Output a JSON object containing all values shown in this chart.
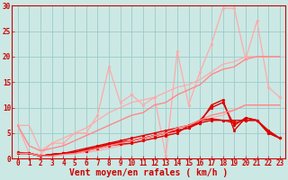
{
  "xlabel": "Vent moyen/en rafales ( km/h )",
  "ylabel": "",
  "xlim": [
    -0.5,
    23.5
  ],
  "ylim": [
    0,
    30
  ],
  "background_color": "#cce8e4",
  "grid_color": "#99cccc",
  "x": [
    0,
    1,
    2,
    3,
    4,
    5,
    6,
    7,
    8,
    9,
    10,
    11,
    12,
    13,
    14,
    15,
    16,
    17,
    18,
    19,
    20,
    21,
    22,
    23
  ],
  "lines": [
    {
      "y": [
        6.5,
        6.5,
        1.5,
        3.0,
        4.0,
        5.0,
        6.0,
        7.5,
        9.0,
        10.0,
        11.0,
        11.5,
        12.0,
        13.0,
        14.0,
        14.5,
        15.5,
        17.0,
        18.5,
        19.0,
        20.0,
        20.0,
        20.0,
        20.0
      ],
      "color": "#ffaaaa",
      "lw": 0.9,
      "marker": null,
      "ms": 0,
      "alpha": 1.0
    },
    {
      "y": [
        1.0,
        1.0,
        0.5,
        0.5,
        0.8,
        1.0,
        1.2,
        1.5,
        2.0,
        2.5,
        3.0,
        3.5,
        4.0,
        4.5,
        5.5,
        6.0,
        7.0,
        8.0,
        8.5,
        9.5,
        10.5,
        10.5,
        10.5,
        10.5
      ],
      "color": "#ffaaaa",
      "lw": 0.9,
      "marker": null,
      "ms": 0,
      "alpha": 1.0
    },
    {
      "y": [
        6.5,
        1.0,
        0.8,
        3.0,
        3.0,
        5.0,
        5.0,
        8.5,
        18.0,
        11.0,
        12.5,
        10.5,
        12.0,
        0.5,
        21.0,
        10.5,
        17.0,
        22.5,
        29.5,
        29.5,
        19.5,
        27.0,
        14.0,
        12.0
      ],
      "color": "#ffaaaa",
      "lw": 0.9,
      "marker": "o",
      "ms": 2.0,
      "alpha": 1.0
    },
    {
      "y": [
        1.0,
        1.0,
        0.5,
        0.8,
        1.0,
        1.2,
        1.5,
        2.0,
        2.5,
        2.8,
        3.0,
        3.5,
        4.0,
        4.5,
        5.0,
        6.5,
        7.0,
        10.5,
        11.5,
        5.5,
        8.0,
        7.5,
        5.0,
        4.0
      ],
      "color": "#dd0000",
      "lw": 1.0,
      "marker": "o",
      "ms": 2.0,
      "alpha": 1.0
    },
    {
      "y": [
        1.0,
        1.0,
        0.5,
        0.8,
        1.0,
        1.2,
        1.5,
        2.2,
        2.8,
        3.2,
        3.5,
        4.0,
        4.5,
        5.0,
        5.5,
        6.0,
        7.5,
        10.0,
        11.0,
        6.5,
        8.0,
        7.5,
        5.5,
        4.0
      ],
      "color": "#dd0000",
      "lw": 1.0,
      "marker": "o",
      "ms": 2.0,
      "alpha": 1.0
    },
    {
      "y": [
        1.0,
        1.0,
        0.5,
        0.8,
        1.0,
        1.2,
        1.8,
        2.2,
        2.8,
        3.2,
        3.5,
        4.0,
        4.5,
        5.0,
        5.5,
        6.0,
        7.0,
        7.5,
        7.5,
        7.5,
        7.5,
        7.5,
        5.0,
        4.0
      ],
      "color": "#dd0000",
      "lw": 1.0,
      "marker": "o",
      "ms": 2.0,
      "alpha": 1.0
    },
    {
      "y": [
        1.2,
        1.0,
        0.5,
        0.8,
        1.0,
        1.5,
        2.0,
        2.5,
        3.0,
        3.5,
        4.0,
        4.5,
        5.0,
        5.5,
        6.0,
        6.5,
        7.5,
        7.8,
        7.5,
        7.0,
        7.5,
        7.5,
        5.2,
        4.0
      ],
      "color": "#dd0000",
      "lw": 1.0,
      "marker": "o",
      "ms": 2.0,
      "alpha": 1.0
    },
    {
      "y": [
        6.5,
        2.5,
        1.5,
        2.0,
        2.5,
        3.5,
        4.5,
        5.5,
        6.5,
        7.5,
        8.5,
        9.0,
        10.5,
        11.0,
        12.5,
        13.5,
        14.5,
        16.5,
        17.5,
        18.0,
        19.5,
        20.0,
        20.0,
        20.0
      ],
      "color": "#ff8888",
      "lw": 1.0,
      "marker": null,
      "ms": 0,
      "alpha": 1.0
    },
    {
      "y": [
        1.0,
        1.0,
        0.5,
        0.5,
        0.8,
        1.0,
        1.5,
        2.0,
        2.5,
        3.0,
        3.5,
        4.0,
        4.5,
        5.0,
        6.0,
        6.5,
        7.5,
        8.5,
        9.0,
        9.5,
        10.5,
        10.5,
        10.5,
        10.5
      ],
      "color": "#ff8888",
      "lw": 1.0,
      "marker": null,
      "ms": 0,
      "alpha": 1.0
    }
  ],
  "xticks": [
    0,
    1,
    2,
    3,
    4,
    5,
    6,
    7,
    8,
    9,
    10,
    11,
    12,
    13,
    14,
    15,
    16,
    17,
    18,
    19,
    20,
    21,
    22,
    23
  ],
  "yticks": [
    0,
    5,
    10,
    15,
    20,
    25,
    30
  ],
  "tick_color": "#cc0000",
  "label_color": "#cc0000",
  "xlabel_fontsize": 7,
  "tick_fontsize": 5.5
}
